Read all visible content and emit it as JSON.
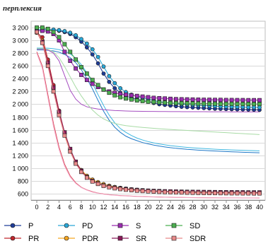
{
  "chart_data": {
    "type": "line",
    "ylabel": "перплексия",
    "xlabel": "",
    "title": "",
    "xlim": [
      0,
      40
    ],
    "ylim": [
      500,
      3300
    ],
    "x_ticks": [
      0,
      2,
      4,
      6,
      8,
      10,
      12,
      14,
      16,
      18,
      20,
      22,
      24,
      26,
      28,
      30,
      32,
      34,
      36,
      38,
      40
    ],
    "y_ticks": [
      600,
      800,
      1000,
      1200,
      1400,
      1600,
      1800,
      2000,
      2200,
      2400,
      2600,
      2800,
      3000,
      3200
    ],
    "y_tick_labels": [
      "600",
      "800",
      "1 000",
      "1 200",
      "1 400",
      "1 600",
      "1 800",
      "2 000",
      "2 200",
      "2 400",
      "2 600",
      "2 800",
      "3 000",
      "3 200"
    ],
    "grid": "horizontal",
    "legend_position": "bottom",
    "series": [
      {
        "name": "P",
        "color": "#1f3d99",
        "marker": "circle",
        "values": [
          3170,
          3170,
          3170,
          3165,
          3150,
          3130,
          3100,
          3050,
          2980,
          2890,
          2780,
          2640,
          2480,
          2350,
          2250,
          2180,
          2130,
          2100,
          2080,
          2060,
          2040,
          2020,
          2000,
          1990,
          1980,
          1970,
          1960,
          1955,
          1950,
          1945,
          1940,
          1935,
          1930,
          1928,
          1925,
          1923,
          1920,
          1918,
          1916,
          1914,
          1912
        ]
      },
      {
        "name": "PD",
        "color": "#2aa8d8",
        "marker": "circle",
        "values": [
          3170,
          3170,
          3170,
          3168,
          3160,
          3145,
          3120,
          3080,
          3020,
          2950,
          2860,
          2740,
          2590,
          2440,
          2330,
          2250,
          2190,
          2150,
          2120,
          2100,
          2080,
          2060,
          2040,
          2030,
          2020,
          2010,
          2000,
          1995,
          1990,
          1985,
          1980,
          1975,
          1970,
          1965,
          1962,
          1960,
          1958,
          1955,
          1953,
          1951,
          1950
        ]
      },
      {
        "name": "S",
        "color": "#9b2fb0",
        "marker": "square",
        "values": [
          3150,
          3150,
          3140,
          3100,
          3000,
          2820,
          2680,
          2560,
          2460,
          2380,
          2320,
          2270,
          2230,
          2200,
          2180,
          2160,
          2150,
          2140,
          2130,
          2120,
          2110,
          2100,
          2095,
          2090,
          2085,
          2080,
          2078,
          2076,
          2074,
          2072,
          2070,
          2070,
          2068,
          2068,
          2066,
          2066,
          2065,
          2065,
          2064,
          2064,
          2064
        ]
      },
      {
        "name": "SD",
        "color": "#4caf50",
        "marker": "square",
        "values": [
          3200,
          3200,
          3180,
          3130,
          3050,
          2940,
          2820,
          2700,
          2580,
          2480,
          2380,
          2300,
          2230,
          2180,
          2140,
          2110,
          2090,
          2075,
          2060,
          2050,
          2040,
          2035,
          2030,
          2025,
          2020,
          2018,
          2016,
          2014,
          2012,
          2010,
          2010,
          2008,
          2008,
          2006,
          2006,
          2005,
          2005,
          2004,
          2004,
          2003,
          2003
        ]
      },
      {
        "name": "PR",
        "color": "#c0272d",
        "marker": "circle",
        "values": [
          3120,
          3050,
          2700,
          2300,
          1900,
          1550,
          1280,
          1080,
          950,
          860,
          800,
          760,
          730,
          710,
          690,
          680,
          670,
          660,
          650,
          645,
          640,
          635,
          630,
          628,
          625,
          622,
          620,
          618,
          616,
          615,
          614,
          613,
          612,
          611,
          610,
          610,
          609,
          609,
          608,
          608,
          608
        ]
      },
      {
        "name": "PDR",
        "color": "#f5a623",
        "marker": "circle",
        "values": [
          3120,
          3000,
          2650,
          2250,
          1870,
          1540,
          1290,
          1100,
          970,
          880,
          820,
          780,
          750,
          725,
          705,
          690,
          678,
          668,
          660,
          652,
          646,
          640,
          636,
          632,
          629,
          626,
          624,
          622,
          620,
          618,
          617,
          616,
          615,
          614,
          613,
          612,
          612,
          611,
          611,
          610,
          610
        ]
      },
      {
        "name": "SR",
        "color": "#8b1a5a",
        "marker": "square",
        "values": [
          3130,
          2980,
          2650,
          2260,
          1880,
          1560,
          1300,
          1100,
          960,
          860,
          800,
          760,
          730,
          710,
          695,
          683,
          673,
          665,
          658,
          652,
          647,
          643,
          640,
          637,
          635,
          633,
          631,
          629,
          628,
          627,
          626,
          625,
          624,
          623,
          622,
          622,
          621,
          621,
          620,
          620,
          620
        ]
      },
      {
        "name": "SDR",
        "color": "#e88a8a",
        "marker": "square",
        "values": [
          3130,
          2960,
          2600,
          2200,
          1830,
          1510,
          1260,
          1070,
          940,
          850,
          790,
          752,
          722,
          700,
          684,
          672,
          662,
          654,
          647,
          641,
          636,
          632,
          628,
          625,
          622,
          620,
          618,
          616,
          614,
          612,
          611,
          610,
          609,
          608,
          607,
          606,
          606,
          605,
          605,
          604,
          604
        ]
      },
      {
        "name": "",
        "color": "#1f78c8",
        "marker": "none",
        "values": [
          2850,
          2850,
          2845,
          2835,
          2815,
          2780,
          2730,
          2650,
          2540,
          2400,
          2240,
          2060,
          1890,
          1750,
          1640,
          1560,
          1500,
          1460,
          1430,
          1400,
          1380,
          1360,
          1345,
          1332,
          1320,
          1310,
          1302,
          1294,
          1288,
          1282,
          1277,
          1272,
          1268,
          1264,
          1260,
          1256,
          1252,
          1249,
          1246,
          1243,
          1240
        ]
      },
      {
        "name": "",
        "color": "#3fb7e0",
        "marker": "none",
        "values": [
          2880,
          2880,
          2878,
          2870,
          2855,
          2830,
          2790,
          2720,
          2620,
          2490,
          2330,
          2150,
          1980,
          1830,
          1710,
          1620,
          1560,
          1510,
          1470,
          1440,
          1415,
          1395,
          1378,
          1364,
          1352,
          1342,
          1333,
          1325,
          1318,
          1312,
          1306,
          1301,
          1296,
          1292,
          1288,
          1285,
          1282,
          1279,
          1276,
          1273,
          1270
        ]
      },
      {
        "name": "",
        "color": "#a54ec0",
        "marker": "none",
        "values": [
          2860,
          2860,
          2850,
          2800,
          2680,
          2450,
          2220,
          2080,
          2000,
          1960,
          1940,
          1925,
          1915,
          1908,
          1902,
          1898,
          1895,
          1892,
          1890,
          1889,
          1888,
          1887,
          1886,
          1886,
          1885,
          1885,
          1884,
          1884,
          1883,
          1883,
          1883,
          1882,
          1882,
          1882,
          1882,
          1881,
          1881,
          1881,
          1881,
          1880,
          1880
        ]
      },
      {
        "name": "",
        "color": "#a8dba5",
        "marker": "none",
        "values": [
          2870,
          2870,
          2860,
          2820,
          2730,
          2590,
          2430,
          2270,
          2130,
          2010,
          1910,
          1830,
          1770,
          1730,
          1700,
          1680,
          1665,
          1655,
          1645,
          1637,
          1630,
          1623,
          1617,
          1611,
          1605,
          1600,
          1595,
          1590,
          1585,
          1580,
          1575,
          1570,
          1565,
          1560,
          1555,
          1550,
          1545,
          1540,
          1535,
          1530,
          1525
        ]
      },
      {
        "name": "",
        "color": "#d94c5c",
        "marker": "none",
        "values": [
          2820,
          2600,
          2150,
          1700,
          1330,
          1060,
          880,
          770,
          700,
          660,
          630,
          610,
          595,
          585,
          577,
          571,
          566,
          562,
          558,
          555,
          552,
          550,
          548,
          546,
          544,
          542,
          541,
          540,
          539,
          538,
          537,
          536,
          536,
          535,
          535,
          534,
          534,
          533,
          533,
          533,
          532
        ]
      },
      {
        "name": "",
        "color": "#f4a9c8",
        "marker": "none",
        "values": [
          2800,
          2560,
          2100,
          1650,
          1290,
          1030,
          860,
          760,
          695,
          655,
          625,
          606,
          592,
          582,
          574,
          568,
          563,
          559,
          556,
          553,
          550,
          548,
          546,
          544,
          542,
          541,
          540,
          539,
          538,
          537,
          536,
          535,
          535,
          534,
          534,
          533,
          533,
          532,
          532,
          532,
          531
        ]
      }
    ]
  },
  "legend": [
    {
      "label": "P",
      "color": "#1f3d99",
      "marker": "circle"
    },
    {
      "label": "PD",
      "color": "#2aa8d8",
      "marker": "circle"
    },
    {
      "label": "S",
      "color": "#9b2fb0",
      "marker": "square"
    },
    {
      "label": "SD",
      "color": "#4caf50",
      "marker": "square"
    },
    {
      "label": "PR",
      "color": "#c0272d",
      "marker": "circle"
    },
    {
      "label": "PDR",
      "color": "#f5a623",
      "marker": "circle"
    },
    {
      "label": "SR",
      "color": "#8b1a5a",
      "marker": "square"
    },
    {
      "label": "SDR",
      "color": "#e88a8a",
      "marker": "square"
    }
  ]
}
